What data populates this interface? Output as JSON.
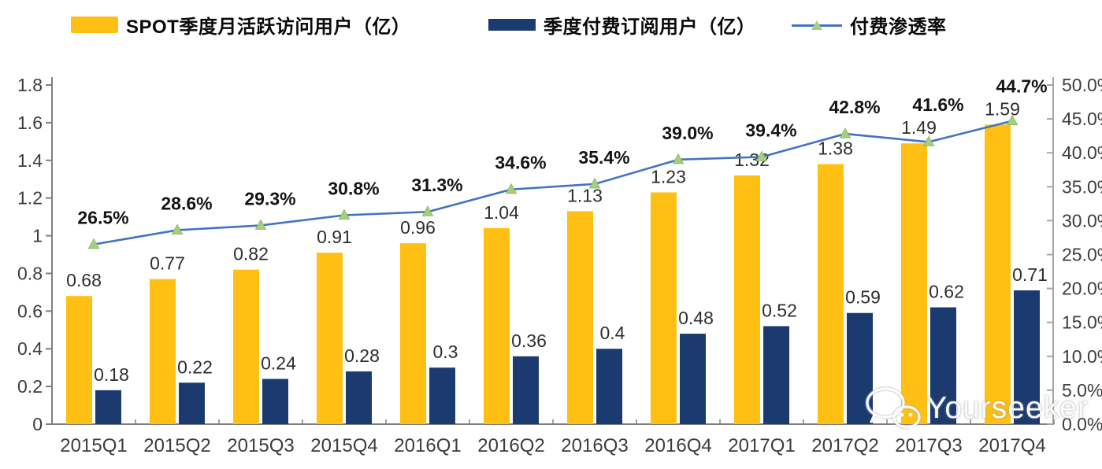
{
  "chart_data": {
    "type": "bar",
    "subtype": "grouped-bars-with-line-combo",
    "title": "",
    "xlabel": "",
    "ylabel_left": "",
    "ylabel_right": "",
    "grid": false,
    "legend_position": "top",
    "categories": [
      "2015Q1",
      "2015Q2",
      "2015Q3",
      "2015Q4",
      "2016Q1",
      "2016Q2",
      "2016Q3",
      "2016Q4",
      "2017Q1",
      "2017Q2",
      "2017Q3",
      "2017Q4"
    ],
    "series": [
      {
        "name": "SPOT季度月活跃访问用户（亿）",
        "type": "bar",
        "axis": "left",
        "color": "#FFC013",
        "values": [
          0.68,
          0.77,
          0.82,
          0.91,
          0.96,
          1.04,
          1.13,
          1.23,
          1.32,
          1.38,
          1.49,
          1.59
        ],
        "labels": [
          "0.68",
          "0.77",
          "0.82",
          "0.91",
          "0.96",
          "1.04",
          "1.13",
          "1.23",
          "1.32",
          "1.38",
          "1.49",
          "1.59"
        ]
      },
      {
        "name": "季度付费订阅用户（亿）",
        "type": "bar",
        "axis": "left",
        "color": "#1B3A70",
        "values": [
          0.18,
          0.22,
          0.24,
          0.28,
          0.3,
          0.36,
          0.4,
          0.48,
          0.52,
          0.59,
          0.62,
          0.71
        ],
        "labels": [
          "0.18",
          "0.22",
          "0.24",
          "0.28",
          "0.3",
          "0.36",
          "0.4",
          "0.48",
          "0.52",
          "0.59",
          "0.62",
          "0.71"
        ]
      },
      {
        "name": "付费渗透率",
        "type": "line",
        "axis": "right",
        "line_color": "#4472C4",
        "marker": "triangle-up",
        "marker_color": "#A6CE82",
        "values": [
          26.5,
          28.6,
          29.3,
          30.8,
          31.3,
          34.6,
          35.4,
          39.0,
          39.4,
          42.8,
          41.6,
          44.7
        ],
        "labels": [
          "26.5%",
          "28.6%",
          "29.3%",
          "30.8%",
          "31.3%",
          "34.6%",
          "35.4%",
          "39.0%",
          "39.4%",
          "42.8%",
          "41.6%",
          "44.7%"
        ]
      }
    ],
    "left_axis": {
      "min": 0,
      "max": 1.8,
      "step": 0.2,
      "ticks": [
        {
          "value": 0,
          "label": "0"
        },
        {
          "value": 0.2,
          "label": "0.2"
        },
        {
          "value": 0.4,
          "label": "0.4"
        },
        {
          "value": 0.6,
          "label": "0.6"
        },
        {
          "value": 0.8,
          "label": "0.8"
        },
        {
          "value": 1.0,
          "label": "1"
        },
        {
          "value": 1.2,
          "label": "1.2"
        },
        {
          "value": 1.4,
          "label": "1.4"
        },
        {
          "value": 1.6,
          "label": "1.6"
        },
        {
          "value": 1.8,
          "label": "1.8"
        }
      ]
    },
    "right_axis": {
      "min": 0,
      "max": 50,
      "step": 5,
      "ticks": [
        {
          "value": 0,
          "label": "0.0%"
        },
        {
          "value": 5,
          "label": "5.0%"
        },
        {
          "value": 10,
          "label": "10.0%"
        },
        {
          "value": 15,
          "label": "15.0%"
        },
        {
          "value": 20,
          "label": "20.0%"
        },
        {
          "value": 25,
          "label": "25.0%"
        },
        {
          "value": 30,
          "label": "30.0%"
        },
        {
          "value": 35,
          "label": "35.0%"
        },
        {
          "value": 40,
          "label": "40.0%"
        },
        {
          "value": 45,
          "label": "45.0%"
        },
        {
          "value": 50,
          "label": "50.0%"
        }
      ]
    }
  },
  "colors": {
    "bar_mau": "#FFC013",
    "bar_subs": "#1B3A70",
    "line": "#4472C4",
    "marker_fill": "#A6CE82",
    "marker_stroke": "#8FBC5E",
    "axis": "#808080",
    "axis_right": "#A6A6A6",
    "tick_label": "#3D3D3D",
    "bar_label": "#2E2E2E",
    "pct_label": "#141414"
  },
  "watermark": {
    "text": "Yourseeker",
    "icon": "wechat-icon"
  }
}
